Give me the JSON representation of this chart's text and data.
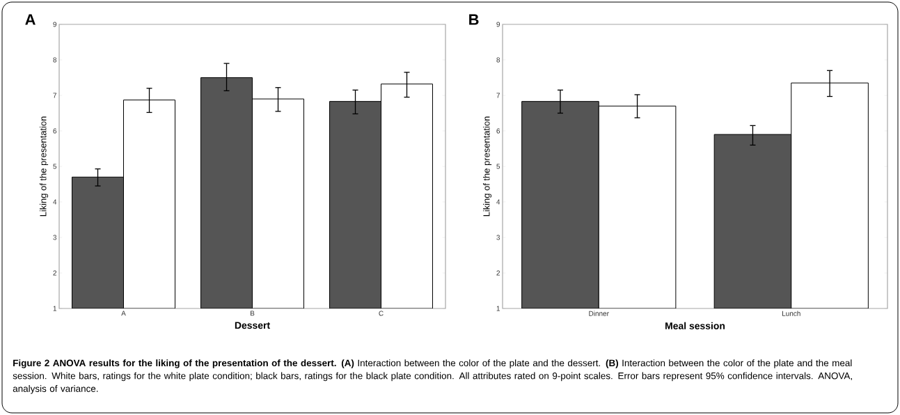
{
  "chart_data": [
    {
      "type": "bar",
      "title": "A",
      "xlabel": "Dessert",
      "ylabel": "Liking of the presentation",
      "categories": [
        "A",
        "B",
        "C"
      ],
      "series": [
        {
          "color": "#555555",
          "values": [
            4.7,
            7.5,
            6.83
          ],
          "errors": [
            [
              4.45,
              4.93
            ],
            [
              7.13,
              7.9
            ],
            [
              6.48,
              7.15
            ]
          ]
        },
        {
          "color": "#ffffff",
          "values": [
            6.87,
            6.9,
            7.32
          ],
          "errors": [
            [
              6.52,
              7.2
            ],
            [
              6.55,
              7.22
            ],
            [
              6.95,
              7.65
            ]
          ]
        }
      ],
      "ylim": [
        1,
        9
      ],
      "yticks": [
        1,
        2,
        3,
        4,
        5,
        6,
        7,
        8,
        9
      ],
      "annotations": [
        "**Figure 2 ANOVA results for the liking of the presentation of the dessert. (A)** Interaction between the color of the plate and the dessert. **(B)** Interaction between the color of the plate and the meal session. White bars, ratings for the white plate condition; black bars, ratings for the black plate condition. All attributes rated on 9-point scales. Error bars represent 95% confidence intervals. ANOVA, analysis of variance."
      ]
    },
    {
      "type": "bar",
      "title": "B",
      "xlabel": "Meal session",
      "ylabel": "Liking of the presentation",
      "categories": [
        "Dinner",
        "Lunch"
      ],
      "series": [
        {
          "color": "#555555",
          "values": [
            6.83,
            5.9
          ],
          "errors": [
            [
              6.5,
              7.15
            ],
            [
              5.6,
              6.15
            ]
          ]
        },
        {
          "color": "#ffffff",
          "values": [
            6.7,
            7.35
          ],
          "errors": [
            [
              6.37,
              7.02
            ],
            [
              6.97,
              7.7
            ]
          ]
        }
      ],
      "ylim": [
        1,
        9
      ],
      "yticks": [
        1,
        2,
        3,
        4,
        5,
        6,
        7,
        8,
        9
      ]
    }
  ]
}
